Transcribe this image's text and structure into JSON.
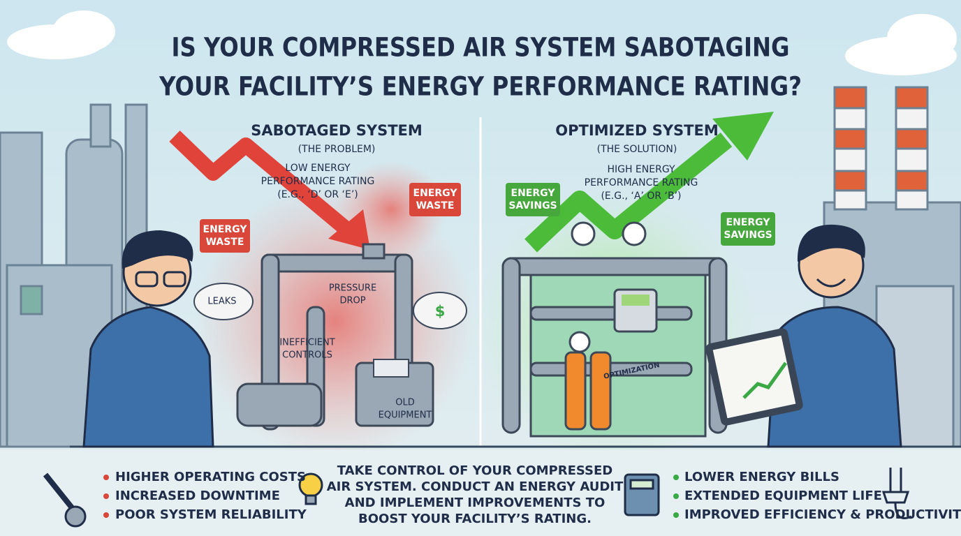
{
  "title": [
    "IS YOUR COMPRESSED AIR SYSTEM SABOTAGING",
    "YOUR FACILITY’S ENERGY PERFORMANCE RATING?"
  ],
  "left": {
    "heading": "SABOTAGED SYSTEM",
    "subheading": "(THE PROBLEM)",
    "rating": [
      "LOW ENERGY",
      "PERFORMANCE RATING",
      "(E.G., ‘D’ OR ‘E’)"
    ],
    "tags": [
      {
        "lines": [
          "ENERGY",
          "WASTE"
        ]
      },
      {
        "lines": [
          "ENERGY",
          "WASTE"
        ]
      }
    ],
    "labels": [
      {
        "lines": [
          "LEAKS"
        ]
      },
      {
        "lines": [
          "PRESSURE",
          "DROP"
        ]
      },
      {
        "lines": [
          "INEFFICIENT",
          "CONTROLS"
        ]
      },
      {
        "lines": [
          "OLD",
          "EQUIPMENT"
        ]
      }
    ],
    "cloud_symbol": "$"
  },
  "right": {
    "heading": "OPTIMIZED SYSTEM",
    "subheading": "(THE SOLUTION)",
    "rating": [
      "HIGH ENERGY",
      "PERFORMANCE RATING",
      "(E.G., ‘A’ OR ‘B’)"
    ],
    "tags": [
      {
        "lines": [
          "ENERGY",
          "SAVINGS"
        ]
      },
      {
        "lines": [
          "ENERGY",
          "SAVINGS"
        ]
      }
    ],
    "tablet": "OPTIMIZATION"
  },
  "footer": {
    "problems": [
      "HIGHER OPERATING COSTS",
      "INCREASED DOWNTIME",
      "POOR SYSTEM RELIABILITY"
    ],
    "call_to_action": [
      "TAKE CONTROL OF YOUR COMPRESSED",
      "AIR SYSTEM. CONDUCT AN ENERGY AUDIT",
      "AND IMPLEMENT IMPROVEMENTS TO",
      "BOOST YOUR FACILITY’S RATING."
    ],
    "benefits": [
      "LOWER ENERGY BILLS",
      "EXTENDED EQUIPMENT LIFE",
      "IMPROVED EFFICIENCY & PRODUCTIVITY"
    ]
  }
}
